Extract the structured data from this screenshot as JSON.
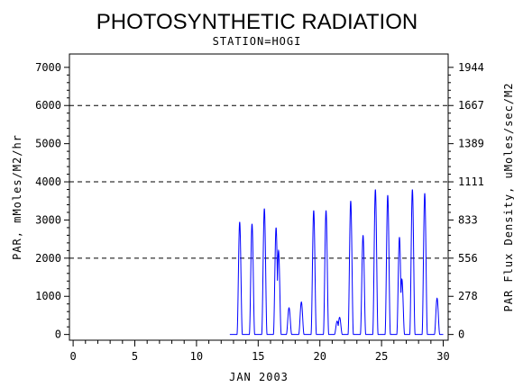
{
  "chart_data": {
    "type": "line",
    "title": "PHOTOSYNTHETIC RADIATION",
    "subtitle": "STATION=HOGI",
    "xlabel": "JAN 2003",
    "ylabel_left": "PAR, mMoles/M2/hr",
    "ylabel_right": "PAR Flux Density, uMoles/sec/M2",
    "xlim": [
      -0.3,
      30.4
    ],
    "ylim": [
      -150,
      7350
    ],
    "x_ticks": [
      "0",
      "5",
      "10",
      "15",
      "20",
      "25",
      "30"
    ],
    "y_ticks_left": [
      "0",
      "1000",
      "2000",
      "3000",
      "4000",
      "5000",
      "6000",
      "7000"
    ],
    "y_ticks_right": [
      "0",
      "278",
      "556",
      "833",
      "1111",
      "1389",
      "1667",
      "1944"
    ],
    "grid_lines_y": [
      2000,
      4000,
      6000
    ],
    "line_color": "#0000ff",
    "days": [
      {
        "day": 13,
        "peaks": [
          {
            "at": 0.5,
            "val": 2950
          }
        ]
      },
      {
        "day": 14,
        "peaks": [
          {
            "at": 0.5,
            "val": 2900
          }
        ]
      },
      {
        "day": 15,
        "peaks": [
          {
            "at": 0.5,
            "val": 3300
          }
        ]
      },
      {
        "day": 16,
        "peaks": [
          {
            "at": 0.45,
            "val": 2800
          },
          {
            "at": 0.65,
            "val": 2200
          }
        ]
      },
      {
        "day": 17,
        "peaks": [
          {
            "at": 0.5,
            "val": 700
          }
        ]
      },
      {
        "day": 18,
        "peaks": [
          {
            "at": 0.5,
            "val": 850
          }
        ]
      },
      {
        "day": 19,
        "peaks": [
          {
            "at": 0.5,
            "val": 3250
          }
        ]
      },
      {
        "day": 20,
        "peaks": [
          {
            "at": 0.5,
            "val": 3250
          }
        ]
      },
      {
        "day": 21,
        "peaks": [
          {
            "at": 0.4,
            "val": 350
          },
          {
            "at": 0.6,
            "val": 450
          }
        ]
      },
      {
        "day": 22,
        "peaks": [
          {
            "at": 0.5,
            "val": 3500
          }
        ]
      },
      {
        "day": 23,
        "peaks": [
          {
            "at": 0.5,
            "val": 2600
          }
        ]
      },
      {
        "day": 24,
        "peaks": [
          {
            "at": 0.5,
            "val": 3800
          }
        ]
      },
      {
        "day": 25,
        "peaks": [
          {
            "at": 0.5,
            "val": 3650
          }
        ]
      },
      {
        "day": 26,
        "peaks": [
          {
            "at": 0.45,
            "val": 2550
          },
          {
            "at": 0.65,
            "val": 1450
          }
        ]
      },
      {
        "day": 27,
        "peaks": [
          {
            "at": 0.5,
            "val": 3800
          }
        ]
      },
      {
        "day": 28,
        "peaks": [
          {
            "at": 0.5,
            "val": 3700
          }
        ]
      },
      {
        "day": 29,
        "peaks": [
          {
            "at": 0.5,
            "val": 950
          }
        ]
      }
    ]
  }
}
